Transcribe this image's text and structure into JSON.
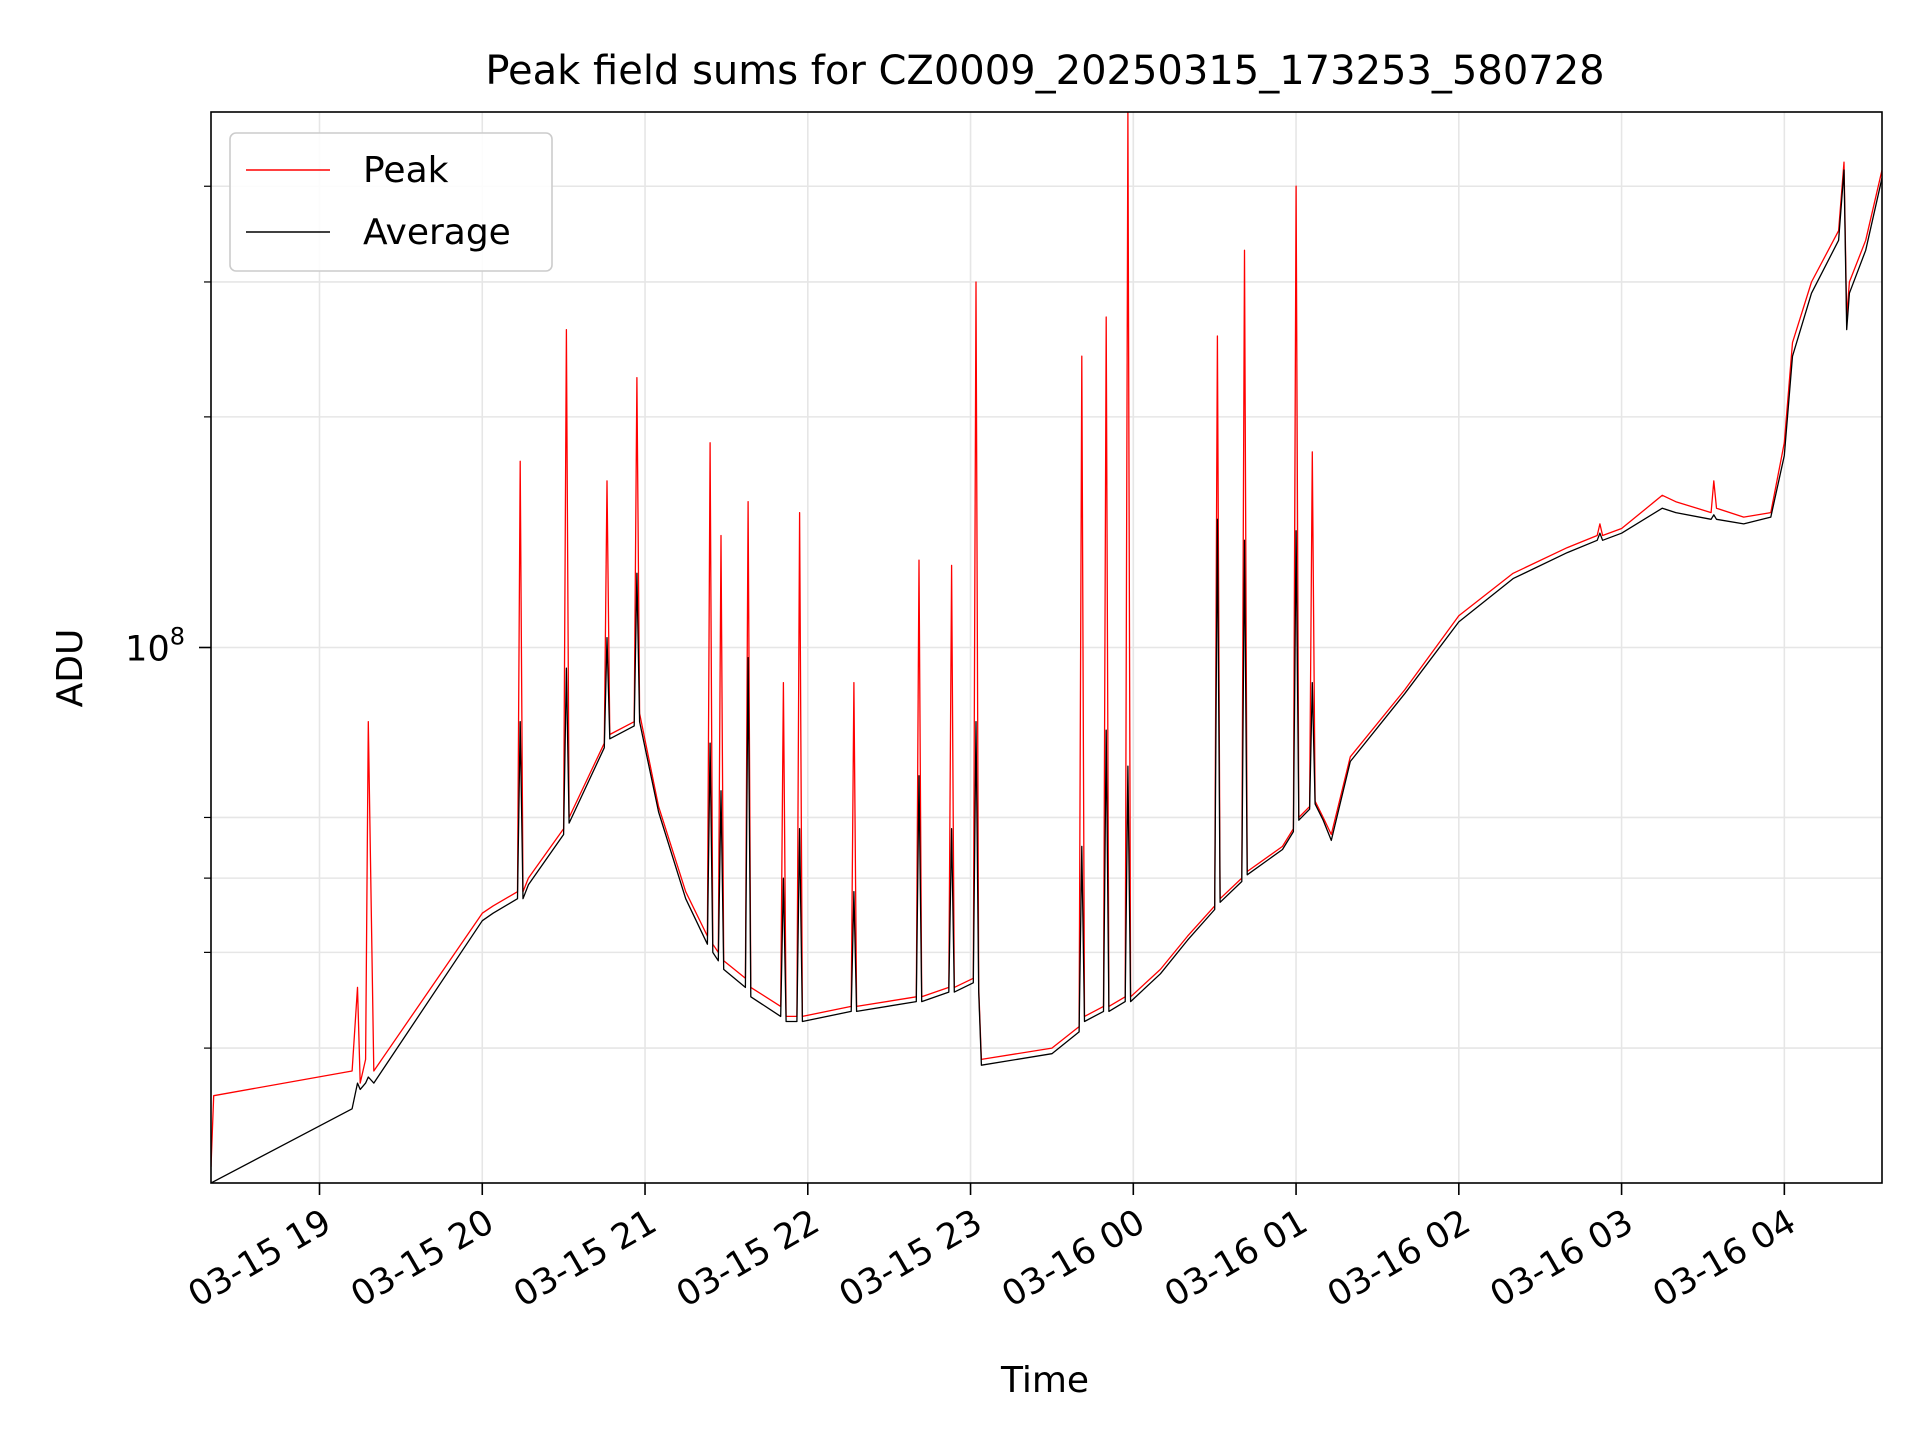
{
  "chart_data": {
    "type": "line",
    "title": "Peak field sums for CZ0009_20250315_173253_580728",
    "xlabel": "Time",
    "ylabel": "ADU",
    "yscale": "log",
    "grid": true,
    "legend_position": "upper-left",
    "xlim": [
      "2025-03-15 18:20",
      "2025-03-16 04:36"
    ],
    "ylim": [
      20000000,
      500000000
    ],
    "x_ticks": [
      "2025-03-15 19:00",
      "2025-03-15 20:00",
      "2025-03-15 21:00",
      "2025-03-15 22:00",
      "2025-03-15 23:00",
      "2025-03-16 00:00",
      "2025-03-16 01:00",
      "2025-03-16 02:00",
      "2025-03-16 03:00",
      "2025-03-16 04:00"
    ],
    "x_tick_labels": [
      "03-15 19",
      "03-15 20",
      "03-15 21",
      "03-15 22",
      "03-15 23",
      "03-16 00",
      "03-16 01",
      "03-16 02",
      "03-16 03",
      "03-16 04"
    ],
    "y_major_ticks": [
      100000000
    ],
    "y_major_tick_labels": [
      {
        "base": "10",
        "exp": "8"
      }
    ],
    "y_minor_ticks": [
      30000000,
      40000000,
      50000000,
      60000000,
      200000000,
      300000000,
      400000000
    ],
    "series": [
      {
        "name": "Peak",
        "color": "#ff0000",
        "x": [
          "2025-03-15 18:20",
          "2025-03-15 18:21",
          "2025-03-15 19:12",
          "2025-03-15 19:14",
          "2025-03-15 19:15",
          "2025-03-15 19:17",
          "2025-03-15 19:18",
          "2025-03-15 19:20",
          "2025-03-15 20:00",
          "2025-03-15 20:04",
          "2025-03-15 20:13",
          "2025-03-15 20:14",
          "2025-03-15 20:15",
          "2025-03-15 20:17",
          "2025-03-15 20:30",
          "2025-03-15 20:31",
          "2025-03-15 20:32",
          "2025-03-15 20:45",
          "2025-03-15 20:46",
          "2025-03-15 20:47",
          "2025-03-15 20:56",
          "2025-03-15 20:57",
          "2025-03-15 20:58",
          "2025-03-15 21:05",
          "2025-03-15 21:15",
          "2025-03-15 21:23",
          "2025-03-15 21:24",
          "2025-03-15 21:25",
          "2025-03-15 21:27",
          "2025-03-15 21:28",
          "2025-03-15 21:29",
          "2025-03-15 21:37",
          "2025-03-15 21:38",
          "2025-03-15 21:39",
          "2025-03-15 21:50",
          "2025-03-15 21:51",
          "2025-03-15 21:52",
          "2025-03-15 21:56",
          "2025-03-15 21:57",
          "2025-03-15 21:58",
          "2025-03-15 22:16",
          "2025-03-15 22:17",
          "2025-03-15 22:18",
          "2025-03-15 22:40",
          "2025-03-15 22:41",
          "2025-03-15 22:42",
          "2025-03-15 22:52",
          "2025-03-15 22:53",
          "2025-03-15 22:54",
          "2025-03-15 23:01",
          "2025-03-15 23:02",
          "2025-03-15 23:03",
          "2025-03-15 23:04",
          "2025-03-15 23:30",
          "2025-03-15 23:40",
          "2025-03-15 23:41",
          "2025-03-15 23:42",
          "2025-03-15 23:49",
          "2025-03-15 23:50",
          "2025-03-15 23:51",
          "2025-03-15 23:57",
          "2025-03-15 23:58",
          "2025-03-15 23:59",
          "2025-03-16 00:10",
          "2025-03-16 00:20",
          "2025-03-16 00:30",
          "2025-03-16 00:31",
          "2025-03-16 00:32",
          "2025-03-16 00:40",
          "2025-03-16 00:41",
          "2025-03-16 00:42",
          "2025-03-16 00:55",
          "2025-03-16 00:59",
          "2025-03-16 01:00",
          "2025-03-16 01:01",
          "2025-03-16 01:05",
          "2025-03-16 01:06",
          "2025-03-16 01:07",
          "2025-03-16 01:10",
          "2025-03-16 01:13",
          "2025-03-16 01:20",
          "2025-03-16 01:40",
          "2025-03-16 02:00",
          "2025-03-16 02:20",
          "2025-03-16 02:40",
          "2025-03-16 02:51",
          "2025-03-16 02:52",
          "2025-03-16 02:53",
          "2025-03-16 03:00",
          "2025-03-16 03:15",
          "2025-03-16 03:20",
          "2025-03-16 03:33",
          "2025-03-16 03:34",
          "2025-03-16 03:35",
          "2025-03-16 03:45",
          "2025-03-16 03:55",
          "2025-03-16 04:00",
          "2025-03-16 04:03",
          "2025-03-16 04:10",
          "2025-03-16 04:20",
          "2025-03-16 04:22",
          "2025-03-16 04:23",
          "2025-03-16 04:24",
          "2025-03-16 04:30",
          "2025-03-16 04:36"
        ],
        "values": [
          21000000,
          26000000,
          28000000,
          36000000,
          27000000,
          29000000,
          80000000,
          28000000,
          45000000,
          46000000,
          48000000,
          175000000,
          48000000,
          50000000,
          58000000,
          260000000,
          60000000,
          75000000,
          165000000,
          77000000,
          80000000,
          225000000,
          82000000,
          62000000,
          48000000,
          42000000,
          185000000,
          41000000,
          40000000,
          140000000,
          39000000,
          37000000,
          155000000,
          36000000,
          34000000,
          90000000,
          33000000,
          33000000,
          150000000,
          33000000,
          34000000,
          90000000,
          34000000,
          35000000,
          130000000,
          35000000,
          36000000,
          128000000,
          36000000,
          37000000,
          300000000,
          36000000,
          29000000,
          30000000,
          32000000,
          240000000,
          33000000,
          34000000,
          270000000,
          34000000,
          35000000,
          500000000,
          35000000,
          38000000,
          42000000,
          46000000,
          255000000,
          47000000,
          50000000,
          330000000,
          51000000,
          55000000,
          58000000,
          400000000,
          60000000,
          62000000,
          180000000,
          63000000,
          60000000,
          57000000,
          72000000,
          88000000,
          110000000,
          125000000,
          135000000,
          140000000,
          145000000,
          140000000,
          143000000,
          158000000,
          155000000,
          150000000,
          165000000,
          152000000,
          148000000,
          150000000,
          185000000,
          250000000,
          300000000,
          350000000,
          430000000,
          270000000,
          300000000,
          340000000,
          420000000
        ]
      },
      {
        "name": "Average",
        "color": "#000000",
        "x": [
          "2025-03-15 18:20",
          "2025-03-15 19:12",
          "2025-03-15 19:14",
          "2025-03-15 19:15",
          "2025-03-15 19:17",
          "2025-03-15 19:18",
          "2025-03-15 19:20",
          "2025-03-15 20:00",
          "2025-03-15 20:04",
          "2025-03-15 20:13",
          "2025-03-15 20:14",
          "2025-03-15 20:15",
          "2025-03-15 20:17",
          "2025-03-15 20:30",
          "2025-03-15 20:31",
          "2025-03-15 20:32",
          "2025-03-15 20:45",
          "2025-03-15 20:46",
          "2025-03-15 20:47",
          "2025-03-15 20:56",
          "2025-03-15 20:57",
          "2025-03-15 20:58",
          "2025-03-15 21:05",
          "2025-03-15 21:15",
          "2025-03-15 21:23",
          "2025-03-15 21:24",
          "2025-03-15 21:25",
          "2025-03-15 21:27",
          "2025-03-15 21:28",
          "2025-03-15 21:29",
          "2025-03-15 21:37",
          "2025-03-15 21:38",
          "2025-03-15 21:39",
          "2025-03-15 21:50",
          "2025-03-15 21:51",
          "2025-03-15 21:52",
          "2025-03-15 21:56",
          "2025-03-15 21:57",
          "2025-03-15 21:58",
          "2025-03-15 22:16",
          "2025-03-15 22:17",
          "2025-03-15 22:18",
          "2025-03-15 22:40",
          "2025-03-15 22:41",
          "2025-03-15 22:42",
          "2025-03-15 22:52",
          "2025-03-15 22:53",
          "2025-03-15 22:54",
          "2025-03-15 23:01",
          "2025-03-15 23:02",
          "2025-03-15 23:03",
          "2025-03-15 23:04",
          "2025-03-15 23:30",
          "2025-03-15 23:40",
          "2025-03-15 23:41",
          "2025-03-15 23:42",
          "2025-03-15 23:49",
          "2025-03-15 23:50",
          "2025-03-15 23:51",
          "2025-03-15 23:57",
          "2025-03-15 23:58",
          "2025-03-15 23:59",
          "2025-03-16 00:10",
          "2025-03-16 00:20",
          "2025-03-16 00:30",
          "2025-03-16 00:31",
          "2025-03-16 00:32",
          "2025-03-16 00:40",
          "2025-03-16 00:41",
          "2025-03-16 00:42",
          "2025-03-16 00:55",
          "2025-03-16 00:59",
          "2025-03-16 01:00",
          "2025-03-16 01:01",
          "2025-03-16 01:05",
          "2025-03-16 01:06",
          "2025-03-16 01:07",
          "2025-03-16 01:10",
          "2025-03-16 01:13",
          "2025-03-16 01:20",
          "2025-03-16 01:40",
          "2025-03-16 02:00",
          "2025-03-16 02:20",
          "2025-03-16 02:40",
          "2025-03-16 02:51",
          "2025-03-16 02:52",
          "2025-03-16 02:53",
          "2025-03-16 03:00",
          "2025-03-16 03:15",
          "2025-03-16 03:20",
          "2025-03-16 03:33",
          "2025-03-16 03:34",
          "2025-03-16 03:35",
          "2025-03-16 03:45",
          "2025-03-16 03:55",
          "2025-03-16 04:00",
          "2025-03-16 04:03",
          "2025-03-16 04:10",
          "2025-03-16 04:20",
          "2025-03-16 04:22",
          "2025-03-16 04:23",
          "2025-03-16 04:24",
          "2025-03-16 04:30",
          "2025-03-16 04:36"
        ],
        "values": [
          20000000,
          25000000,
          27000000,
          26500000,
          27000000,
          27500000,
          27000000,
          44000000,
          45000000,
          47000000,
          80000000,
          47000000,
          49000000,
          57000000,
          94000000,
          59000000,
          74000000,
          103000000,
          76000000,
          79000000,
          125000000,
          80000000,
          61000000,
          47000000,
          41000000,
          75000000,
          40000000,
          39000000,
          65000000,
          38000000,
          36000000,
          97000000,
          35000000,
          33000000,
          50000000,
          32500000,
          32500000,
          58000000,
          32500000,
          33500000,
          48000000,
          33500000,
          34500000,
          68000000,
          34500000,
          35500000,
          58000000,
          35500000,
          36500000,
          80000000,
          35500000,
          28500000,
          29500000,
          31500000,
          55000000,
          32500000,
          33500000,
          78000000,
          33500000,
          34500000,
          70000000,
          34500000,
          37500000,
          41500000,
          45500000,
          147000000,
          46500000,
          49500000,
          138000000,
          50500000,
          54500000,
          57500000,
          142000000,
          59500000,
          61500000,
          90000000,
          62500000,
          59500000,
          56000000,
          71000000,
          87000000,
          108000000,
          123000000,
          133000000,
          138000000,
          141000000,
          138000000,
          141000000,
          152000000,
          150000000,
          147000000,
          149000000,
          147000000,
          145000000,
          148000000,
          178000000,
          240000000,
          290000000,
          340000000,
          420000000,
          260000000,
          290000000,
          330000000,
          410000000
        ]
      }
    ]
  }
}
